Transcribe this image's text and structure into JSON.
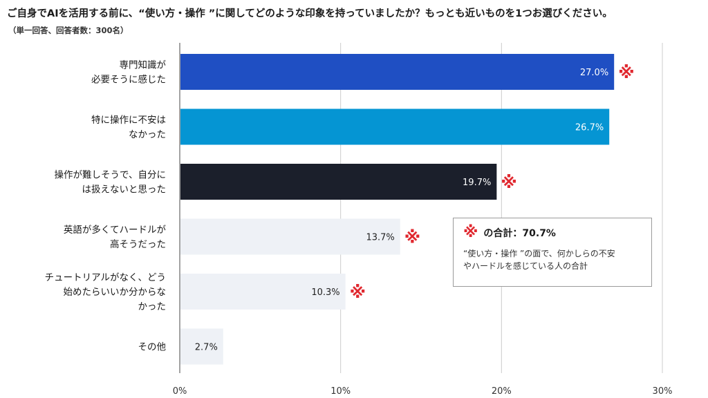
{
  "title": "ご自身でAIを活用する前に、“使い方・操作 ”に関してどのような印象を持っていましたか？もっとも近いものを1つお選びください。",
  "subtitle": "（単一回答、回答者数：300名）",
  "chart_data": {
    "type": "bar",
    "orientation": "horizontal",
    "categories": [
      [
        "専門知識が",
        "必要そうに感じた"
      ],
      [
        "特に操作に不安は",
        "なかった"
      ],
      [
        "操作が難しそうで、自分に",
        "は扱えないと思った"
      ],
      [
        "英語が多くてハードルが",
        "高そうだった"
      ],
      [
        "チュートリアルがなく、どう",
        "始めたらいいか分からな",
        "かった"
      ],
      [
        "その他"
      ]
    ],
    "values": [
      27.0,
      26.7,
      19.7,
      13.7,
      10.3,
      2.7
    ],
    "value_labels": [
      "27.0%",
      "26.7%",
      "19.7%",
      "13.7%",
      "10.3%",
      "2.7%"
    ],
    "colors": [
      "#1f4fc3",
      "#0595d3",
      "#1b1f2b",
      "#eef1f6",
      "#eef1f6",
      "#eef1f6"
    ],
    "label_colors": [
      "#ffffff",
      "#ffffff",
      "#ffffff",
      "#222222",
      "#222222",
      "#222222"
    ],
    "marked": [
      true,
      false,
      true,
      true,
      true,
      false
    ],
    "xlim": [
      0,
      30
    ],
    "ticks": [
      0,
      10,
      20,
      30
    ],
    "tick_labels": [
      "0%",
      "10%",
      "20%",
      "30%"
    ],
    "grid": true
  },
  "marker_symbol": "※",
  "marker_color": "#e0282f",
  "note": {
    "title": "の合計：70.7%",
    "line1": "“使い方・操作 ”の面で、何かしらの不安",
    "line2": "やハードルを感じている人の合計"
  }
}
